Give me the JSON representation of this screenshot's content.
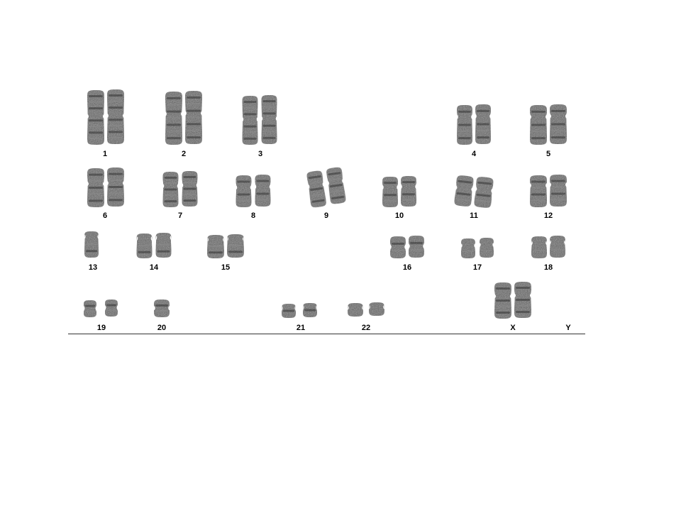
{
  "karyotype": {
    "labels": [
      "1",
      "2",
      "3",
      "4",
      "5",
      "6",
      "7",
      "8",
      "9",
      "10",
      "11",
      "12",
      "13",
      "14",
      "15",
      "16",
      "17",
      "18",
      "19",
      "20",
      "21",
      "22",
      "X",
      "Y"
    ]
  },
  "colors": {
    "chromosome": "#5e5e5e",
    "band_dark": "#333333",
    "band_light": "#8a8a8a",
    "baseline": "#333333"
  }
}
